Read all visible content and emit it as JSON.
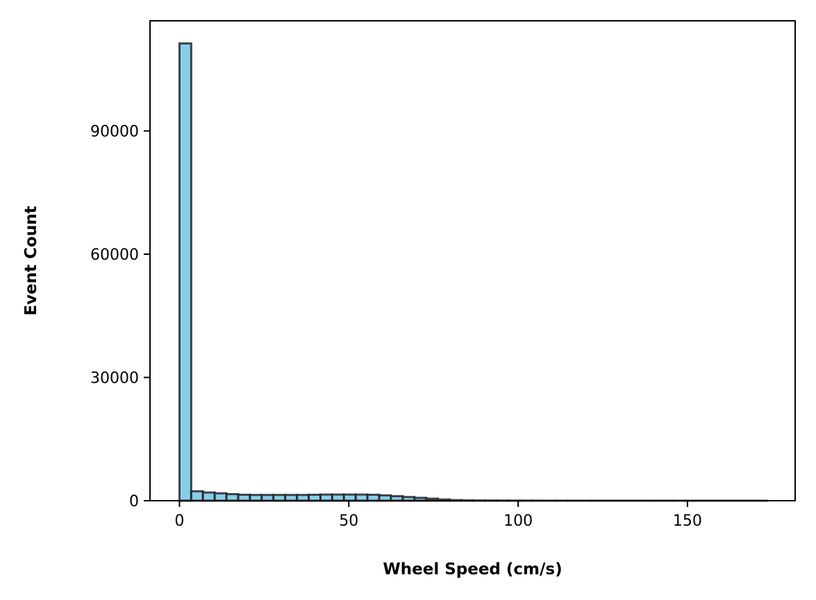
{
  "chart_data": {
    "type": "bar",
    "title": "",
    "xlabel": "Wheel Speed (cm/s)",
    "ylabel": "Event Count",
    "xlim": [
      -8.7,
      181.8
    ],
    "ylim": [
      0,
      116800
    ],
    "xticks": [
      0,
      50,
      100,
      150
    ],
    "yticks": [
      0,
      30000,
      60000,
      90000
    ],
    "grid": false,
    "bar_color": "#87CEEB",
    "edge_color": "#1a1a1a",
    "bin_width": 3.47,
    "bin_start": 0,
    "values": [
      111300,
      2300,
      2000,
      1800,
      1600,
      1450,
      1400,
      1400,
      1400,
      1400,
      1400,
      1450,
      1500,
      1500,
      1500,
      1500,
      1450,
      1300,
      1100,
      900,
      700,
      500,
      300,
      150,
      80,
      50,
      40,
      30,
      25,
      20,
      15,
      12,
      10,
      8,
      6,
      5,
      4,
      3,
      3,
      2,
      2,
      2,
      1,
      1,
      1,
      1,
      1,
      1,
      1,
      1
    ]
  }
}
